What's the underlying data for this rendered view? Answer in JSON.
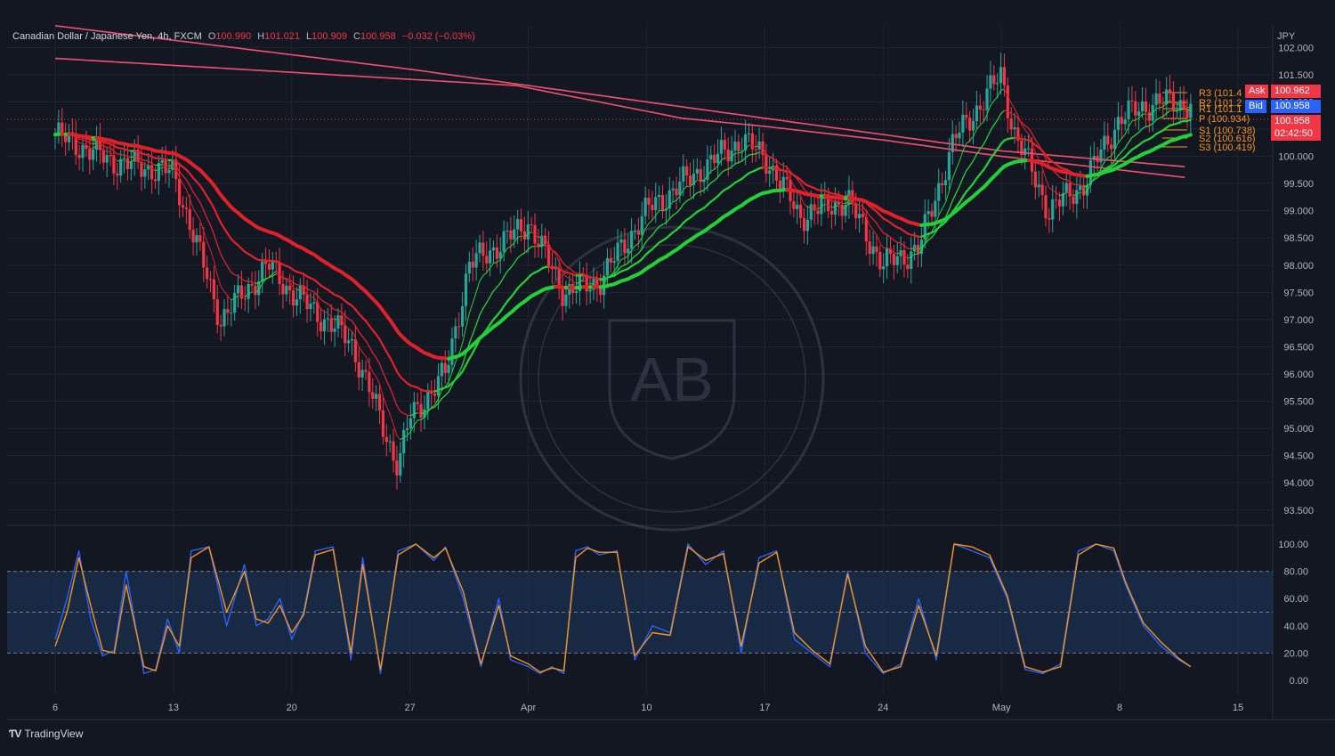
{
  "header": {
    "symbol": "Canadian Dollar / Japanese Yen, 4h, FXCM",
    "open_label": "O",
    "open": "100.990",
    "high_label": "H",
    "high": "101.021",
    "low_label": "L",
    "low": "100.909",
    "close_label": "C",
    "close": "100.958",
    "change": "−0.032 (−0.03%)"
  },
  "currency": "JPY",
  "quotes": {
    "ask_label": "Ask",
    "ask": "100.962",
    "bid_label": "Bid",
    "bid": "100.958",
    "last": "100.958",
    "countdown": "02:42:50"
  },
  "pivots": [
    {
      "label": "R3 (101.4",
      "color": "#f7931a"
    },
    {
      "label": "R2 (101.2",
      "color": "#f7931a"
    },
    {
      "label": "R1 (101.1",
      "color": "#f7931a"
    },
    {
      "label": "P (100.934)",
      "color": "#f7931a"
    },
    {
      "label": "S1 (100.738)",
      "color": "#f7931a"
    },
    {
      "label": "S2 (100.616)",
      "color": "#f7931a"
    },
    {
      "label": "S3 (100.419)",
      "color": "#f7931a"
    }
  ],
  "colors": {
    "background": "#131722",
    "up": "#26a69a",
    "down": "#f23645",
    "ema_green": "#22d13a",
    "ema_red": "#e0202a",
    "stoch_k": "#2962ff",
    "stoch_d": "#f7931a",
    "band": "#1e3a5f"
  },
  "footer": {
    "brand": "TradingView",
    "logo": "tradingview-logo-icon"
  },
  "chart_data": {
    "type": "line",
    "title": "Canadian Dollar / Japanese Yen, 4h, FXCM",
    "price_axis": {
      "ticks": [
        "102.000",
        "101.500",
        "101.000",
        "100.500",
        "100.000",
        "99.500",
        "99.000",
        "98.500",
        "98.000",
        "97.500",
        "97.000",
        "96.500",
        "96.000",
        "95.500",
        "95.000",
        "94.500",
        "94.000",
        "93.500"
      ],
      "ylim": [
        93.3,
        102.3
      ]
    },
    "time_axis": {
      "ticks": [
        "6",
        "13",
        "20",
        "27",
        "Apr",
        "10",
        "17",
        "24",
        "May",
        "8",
        "15"
      ],
      "tick_index": [
        0,
        1,
        2,
        3,
        4,
        5,
        6,
        7,
        8,
        9,
        10
      ]
    },
    "price_path": {
      "t": [
        0,
        0.5,
        1,
        1.4,
        1.8,
        2.0,
        2.5,
        2.9,
        3.0,
        3.3,
        3.5,
        3.9,
        4.0,
        4.3,
        4.6,
        5.0,
        5.3,
        5.8,
        6.0,
        6.3,
        6.7,
        7.0,
        7.3,
        7.6,
        8.0,
        8.1,
        8.4,
        8.7,
        9.0,
        9.3,
        9.6
      ],
      "close": [
        100.4,
        99.9,
        99.7,
        97.0,
        98.0,
        97.5,
        96.6,
        94.3,
        95.2,
        96.0,
        98.0,
        98.6,
        98.8,
        97.5,
        97.7,
        99.0,
        99.5,
        100.3,
        100.0,
        98.9,
        99.2,
        98.0,
        98.3,
        100.3,
        101.5,
        100.5,
        99.0,
        99.5,
        100.7,
        101.0,
        100.958
      ]
    },
    "ema_slow_red": {
      "t": [
        0,
        3.9,
        4.6,
        5.3,
        6.0,
        7.0,
        8.0,
        9.6
      ],
      "values": [
        101.8,
        101.3,
        101.0,
        100.7,
        100.55,
        100.3,
        100.0,
        99.6
      ]
    },
    "ema_slow_red_2": {
      "t": [
        0,
        3.0,
        6.0,
        8.0,
        9.6
      ],
      "values": [
        102.4,
        101.6,
        100.7,
        100.1,
        99.8
      ]
    },
    "stochastic": {
      "ylim": [
        0,
        100
      ],
      "ticks": [
        "100.00",
        "80.00",
        "60.00",
        "40.00",
        "20.00",
        "0.00"
      ],
      "band": [
        20,
        80
      ],
      "mid": 50,
      "t": [
        0,
        0.1,
        0.2,
        0.3,
        0.4,
        0.5,
        0.6,
        0.75,
        0.85,
        0.95,
        1.05,
        1.15,
        1.3,
        1.45,
        1.6,
        1.7,
        1.8,
        1.9,
        2.0,
        2.1,
        2.2,
        2.35,
        2.5,
        2.6,
        2.75,
        2.9,
        3.05,
        3.2,
        3.3,
        3.45,
        3.6,
        3.75,
        3.85,
        4.0,
        4.1,
        4.2,
        4.3,
        4.4,
        4.5,
        4.6,
        4.75,
        4.9,
        5.05,
        5.2,
        5.35,
        5.5,
        5.65,
        5.8,
        5.95,
        6.1,
        6.25,
        6.4,
        6.55,
        6.7,
        6.85,
        7.0,
        7.15,
        7.3,
        7.45,
        7.6,
        7.75,
        7.9,
        8.05,
        8.2,
        8.35,
        8.5,
        8.65,
        8.8,
        8.95,
        9.05,
        9.2,
        9.35,
        9.5,
        9.6
      ],
      "k": [
        30,
        60,
        95,
        45,
        18,
        22,
        80,
        5,
        8,
        45,
        20,
        95,
        98,
        40,
        85,
        40,
        45,
        60,
        30,
        50,
        95,
        98,
        15,
        90,
        5,
        95,
        100,
        88,
        98,
        60,
        10,
        60,
        15,
        10,
        5,
        10,
        5,
        95,
        98,
        92,
        95,
        15,
        40,
        35,
        100,
        85,
        95,
        20,
        90,
        95,
        30,
        20,
        10,
        80,
        20,
        5,
        12,
        60,
        15,
        100,
        95,
        90,
        60,
        8,
        5,
        12,
        95,
        100,
        95,
        70,
        40,
        25,
        15,
        10
      ],
      "d": [
        25,
        50,
        90,
        55,
        22,
        20,
        70,
        10,
        7,
        40,
        25,
        90,
        98,
        50,
        80,
        45,
        42,
        55,
        35,
        48,
        92,
        96,
        20,
        85,
        8,
        92,
        100,
        90,
        97,
        65,
        12,
        55,
        18,
        12,
        6,
        9,
        7,
        90,
        97,
        94,
        94,
        18,
        35,
        33,
        98,
        88,
        93,
        25,
        86,
        94,
        35,
        22,
        12,
        78,
        25,
        6,
        10,
        55,
        18,
        100,
        98,
        92,
        62,
        10,
        6,
        10,
        92,
        100,
        97,
        72,
        42,
        28,
        16,
        10
      ]
    }
  }
}
